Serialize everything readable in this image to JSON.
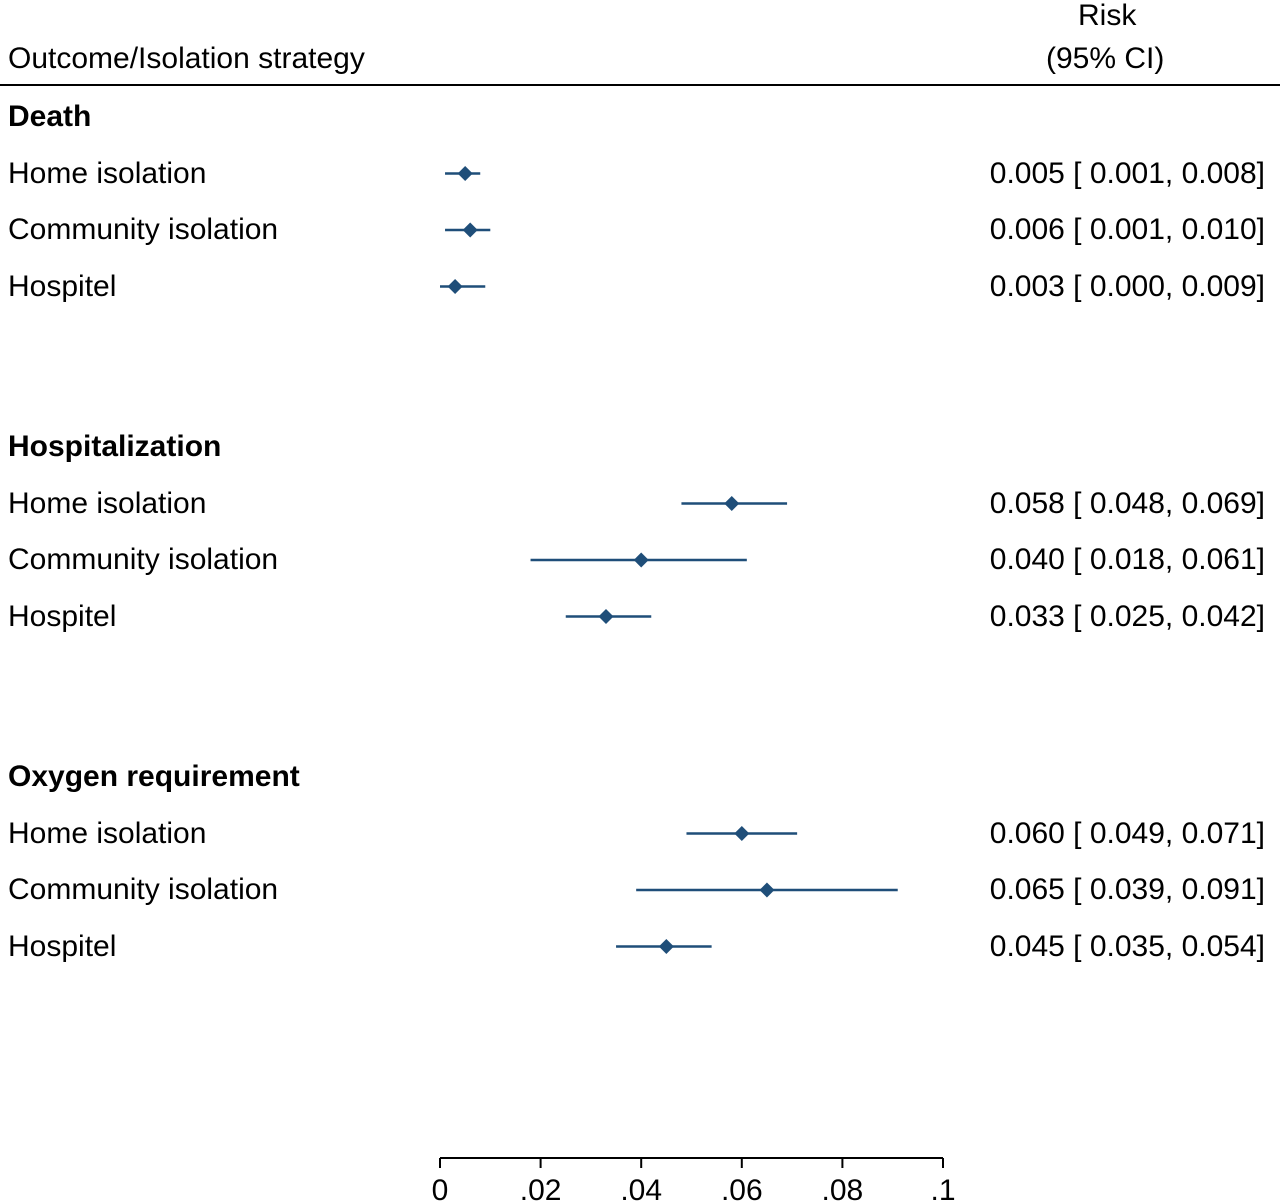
{
  "header": {
    "left_label": "Outcome/Isolation strategy",
    "risk_label": "Risk",
    "ci_label": "(95% CI)"
  },
  "chart_data": {
    "type": "scatter",
    "subtype": "forest-plot",
    "title": "",
    "xlabel": "",
    "ylabel": "",
    "xlim": [
      0,
      0.1
    ],
    "x_ticks": [
      0,
      0.02,
      0.04,
      0.06,
      0.08,
      0.1
    ],
    "x_tick_labels": [
      "0",
      ".02",
      ".04",
      ".06",
      ".08",
      ".1"
    ],
    "grid": false,
    "marker_color": "#1f4e79",
    "groups": [
      {
        "name": "Death",
        "rows": [
          {
            "label": "Home isolation",
            "estimate": 0.005,
            "lower": 0.001,
            "upper": 0.008,
            "text": "0.005 [ 0.001,  0.008]"
          },
          {
            "label": "Community isolation",
            "estimate": 0.006,
            "lower": 0.001,
            "upper": 0.01,
            "text": "0.006 [ 0.001,  0.010]"
          },
          {
            "label": "Hospitel",
            "estimate": 0.003,
            "lower": 0.0,
            "upper": 0.009,
            "text": "0.003 [ 0.000,  0.009]"
          }
        ]
      },
      {
        "name": "Hospitalization",
        "rows": [
          {
            "label": "Home isolation",
            "estimate": 0.058,
            "lower": 0.048,
            "upper": 0.069,
            "text": "0.058 [ 0.048,  0.069]"
          },
          {
            "label": "Community isolation",
            "estimate": 0.04,
            "lower": 0.018,
            "upper": 0.061,
            "text": "0.040 [ 0.018,  0.061]"
          },
          {
            "label": "Hospitel",
            "estimate": 0.033,
            "lower": 0.025,
            "upper": 0.042,
            "text": "0.033 [ 0.025,  0.042]"
          }
        ]
      },
      {
        "name": "Oxygen requirement",
        "rows": [
          {
            "label": "Home isolation",
            "estimate": 0.06,
            "lower": 0.049,
            "upper": 0.071,
            "text": "0.060 [ 0.049,  0.071]"
          },
          {
            "label": "Community isolation",
            "estimate": 0.065,
            "lower": 0.039,
            "upper": 0.091,
            "text": "0.065 [ 0.039,  0.091]"
          },
          {
            "label": "Hospitel",
            "estimate": 0.045,
            "lower": 0.035,
            "upper": 0.054,
            "text": "0.045 [ 0.035,  0.054]"
          }
        ]
      }
    ]
  }
}
